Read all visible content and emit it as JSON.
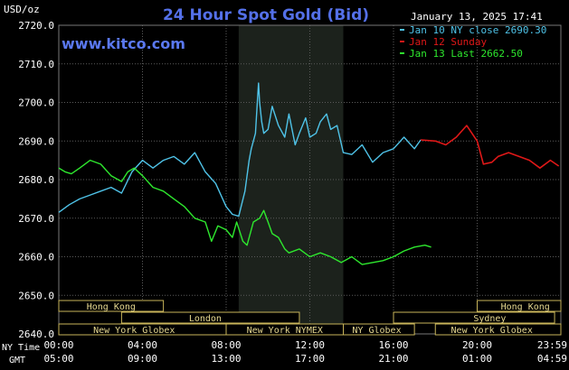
{
  "header": {
    "title": "24 Hour Spot Gold (Bid)",
    "unit": "USD/oz",
    "date_time": "January 13, 2025 17:41",
    "website": "www.kitco.com"
  },
  "legend": [
    {
      "label": "Jan 10 NY close 2690.30",
      "color": "#4fc3e8"
    },
    {
      "label": "Jan 12 Sunday",
      "color": "#e01818"
    },
    {
      "label": "Jan 13 Last 2662.50",
      "color": "#2ee82e"
    }
  ],
  "x_axis": {
    "ny_time_label": "NY Time",
    "gmt_label": "GMT",
    "ny_ticks": [
      "00:00",
      "04:00",
      "08:00",
      "12:00",
      "16:00",
      "20:00",
      "23:59"
    ],
    "gmt_ticks": [
      "05:00",
      "09:00",
      "13:00",
      "17:00",
      "21:00",
      "01:00",
      "04:59"
    ]
  },
  "markets": {
    "row1": [
      "Hong Kong",
      "Hong Kong"
    ],
    "row2": [
      "London",
      "Sydney"
    ],
    "row3": [
      "New York Globex",
      "New York NYMEX",
      "NY Globex",
      "New York Globex"
    ]
  },
  "colors": {
    "background": "#000000",
    "highlight_band": "#1c221c",
    "grid": "#5a5a5a",
    "axis_text": "#ffffff",
    "title": "#5470e8",
    "website": "#5a78f0",
    "market_box_bg": "#000000",
    "market_box_border": "#c8b45a",
    "market_text": "#e6d890"
  },
  "chart_data": {
    "type": "line",
    "title": "24 Hour Spot Gold (Bid)",
    "ylabel": "USD/oz",
    "xlabel": "NY Time",
    "x_unit": "hours (NY Time)",
    "xlim": [
      0,
      24
    ],
    "ylim": [
      2640,
      2720
    ],
    "yticks": [
      2640.0,
      2650.0,
      2660.0,
      2670.0,
      2680.0,
      2690.0,
      2700.0,
      2710.0,
      2720.0
    ],
    "highlight_range_hours": [
      8.6,
      13.6
    ],
    "grid": true,
    "legend_position": "top-right",
    "series": [
      {
        "name": "Jan 10 NY close 2690.30",
        "color": "#4fc3e8",
        "x": [
          0.0,
          0.5,
          1.0,
          1.5,
          2.0,
          2.5,
          3.0,
          3.5,
          4.0,
          4.5,
          5.0,
          5.5,
          6.0,
          6.5,
          7.0,
          7.5,
          8.0,
          8.3,
          8.6,
          8.9,
          9.1,
          9.2,
          9.4,
          9.5,
          9.55,
          9.6,
          9.7,
          9.8,
          10.0,
          10.2,
          10.5,
          10.8,
          11.0,
          11.3,
          11.5,
          11.8,
          12.0,
          12.3,
          12.5,
          12.8,
          13.0,
          13.3,
          13.6,
          14.0,
          14.5,
          15.0,
          15.5,
          16.0,
          16.5,
          17.0,
          17.3
        ],
        "y": [
          2671.5,
          2673.5,
          2675.0,
          2676.0,
          2677.0,
          2678.0,
          2676.5,
          2682.0,
          2685.0,
          2683.0,
          2685.0,
          2686.0,
          2684.0,
          2687.0,
          2682.0,
          2679.0,
          2673.0,
          2671.0,
          2670.5,
          2677.0,
          2685.0,
          2688.0,
          2692.0,
          2701.0,
          2705.0,
          2700.0,
          2695.0,
          2692.0,
          2693.0,
          2699.0,
          2694.0,
          2691.0,
          2697.0,
          2689.0,
          2692.0,
          2696.0,
          2691.0,
          2692.0,
          2695.0,
          2697.0,
          2693.0,
          2694.0,
          2687.0,
          2686.5,
          2689.0,
          2684.5,
          2687.0,
          2688.0,
          2691.0,
          2688.0,
          2690.3
        ]
      },
      {
        "name": "Jan 12 Sunday",
        "color": "#e01818",
        "x": [
          17.3,
          18.0,
          18.5,
          19.0,
          19.5,
          20.0,
          20.3,
          20.7,
          21.0,
          21.5,
          22.0,
          22.5,
          23.0,
          23.5,
          23.9
        ],
        "y": [
          2690.3,
          2690.0,
          2689.0,
          2691.0,
          2694.0,
          2690.0,
          2684.0,
          2684.5,
          2686.0,
          2687.0,
          2686.0,
          2685.0,
          2683.0,
          2685.0,
          2683.5
        ]
      },
      {
        "name": "Jan 13 Last 2662.50",
        "color": "#2ee82e",
        "x": [
          0.0,
          0.3,
          0.6,
          1.0,
          1.5,
          2.0,
          2.5,
          3.0,
          3.3,
          3.6,
          4.0,
          4.5,
          5.0,
          5.5,
          6.0,
          6.5,
          7.0,
          7.3,
          7.6,
          8.0,
          8.3,
          8.5,
          8.8,
          9.0,
          9.3,
          9.6,
          9.8,
          10.0,
          10.2,
          10.5,
          10.8,
          11.0,
          11.5,
          12.0,
          12.5,
          13.0,
          13.5,
          14.0,
          14.5,
          15.0,
          15.5,
          16.0,
          16.5,
          17.0,
          17.5,
          17.8
        ],
        "y": [
          2683.0,
          2682.0,
          2681.5,
          2683.0,
          2685.0,
          2684.0,
          2681.0,
          2679.5,
          2682.0,
          2683.0,
          2681.0,
          2678.0,
          2677.0,
          2675.0,
          2673.0,
          2670.0,
          2669.0,
          2664.0,
          2668.0,
          2667.0,
          2665.0,
          2669.0,
          2664.0,
          2663.0,
          2669.0,
          2670.0,
          2672.0,
          2669.0,
          2666.0,
          2665.0,
          2662.0,
          2661.0,
          2662.0,
          2660.0,
          2661.0,
          2660.0,
          2658.5,
          2660.0,
          2658.0,
          2658.5,
          2659.0,
          2660.0,
          2661.5,
          2662.5,
          2663.0,
          2662.5
        ]
      }
    ]
  }
}
